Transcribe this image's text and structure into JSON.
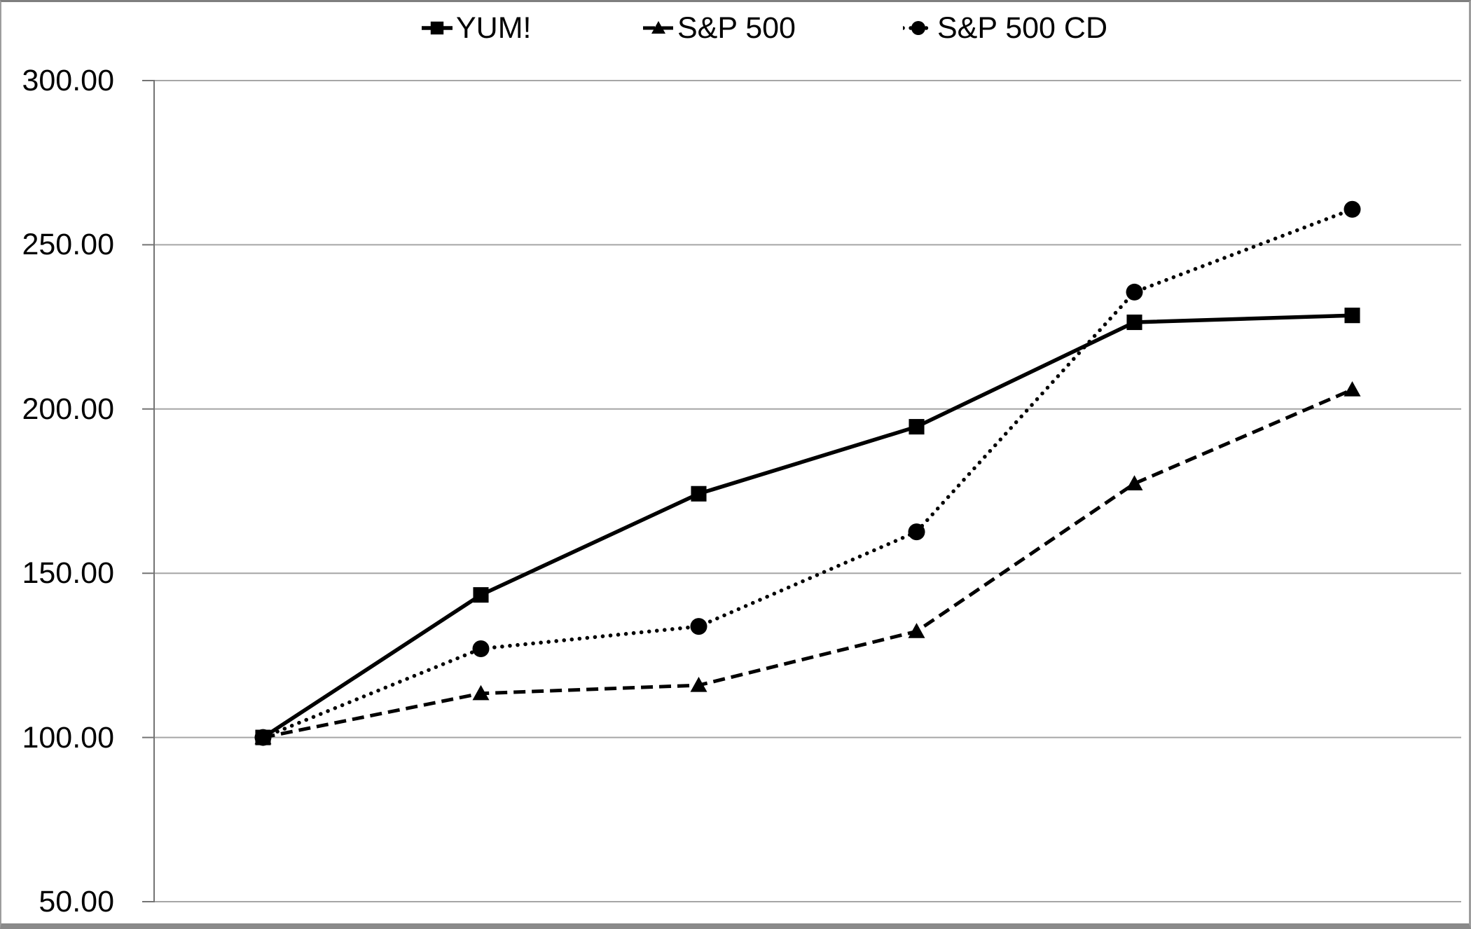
{
  "chart_data": {
    "type": "line",
    "title": "",
    "x": [
      1,
      2,
      3,
      4,
      5,
      6
    ],
    "x_tick_labels": [],
    "series": [
      {
        "name": "YUM!",
        "marker": "square",
        "line_style": "solid",
        "values": [
          100.0,
          143.4,
          174.2,
          194.6,
          226.4,
          228.5
        ]
      },
      {
        "name": "S&P 500",
        "marker": "triangle",
        "line_style": "dashed",
        "values": [
          100.0,
          113.4,
          115.9,
          132.3,
          177.3,
          205.9
        ]
      },
      {
        "name": "S&P 500 CD",
        "marker": "circle",
        "line_style": "dotted",
        "values": [
          100.0,
          127.0,
          133.8,
          162.6,
          235.6,
          260.8
        ]
      }
    ],
    "ylabel": "",
    "xlabel": "",
    "ylim": [
      50,
      300
    ],
    "ytick_step": 50,
    "ytick_values": [
      300,
      250,
      200,
      150,
      100,
      50
    ],
    "ytick_labels": [
      "300.00",
      "250.00",
      "200.00",
      "150.00",
      "100.00",
      "50.00"
    ],
    "grid": true,
    "legend_position": "top",
    "colors": {
      "series": "#000000",
      "gridline": "#a6a6a6",
      "axis": "#737373",
      "background": "#ffffff",
      "border": "#8a8a8a"
    }
  }
}
